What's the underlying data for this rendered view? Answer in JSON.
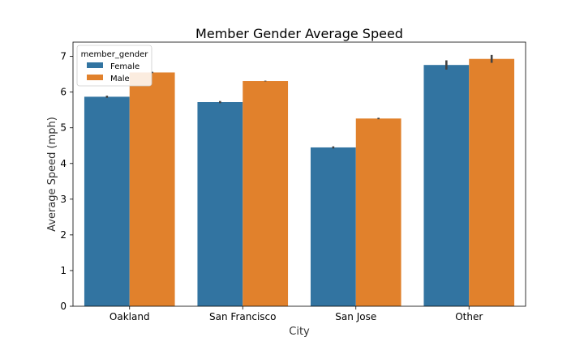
{
  "chart_data": {
    "type": "bar",
    "title": "Member Gender Average Speed",
    "xlabel": "City",
    "ylabel": "Average Speed (mph)",
    "categories": [
      "Oakland",
      "San Francisco",
      "San Jose",
      "Other"
    ],
    "ylim": [
      0,
      7.4
    ],
    "yticks": [
      0,
      1,
      2,
      3,
      4,
      5,
      6,
      7
    ],
    "grid": false,
    "legend": {
      "title": "member_gender",
      "placement": "top-left"
    },
    "series": [
      {
        "name": "Female",
        "color": "#3274a1",
        "values": [
          5.87,
          5.72,
          4.45,
          6.76
        ],
        "error": [
          0.03,
          0.03,
          0.03,
          0.13
        ]
      },
      {
        "name": "Male",
        "color": "#e1812c",
        "values": [
          6.55,
          6.31,
          5.26,
          6.93
        ],
        "error": [
          0.02,
          0.01,
          0.02,
          0.11
        ]
      }
    ]
  }
}
